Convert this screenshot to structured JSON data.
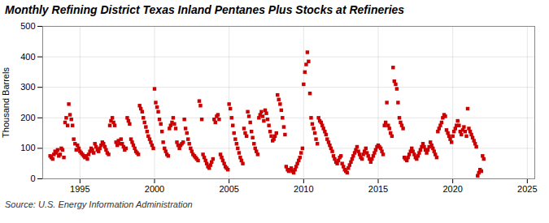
{
  "chart_data": {
    "type": "scatter",
    "title": "Monthly Refining District Texas Inland Pentanes Plus Stocks at Refineries",
    "y_label": "Thousand Barrels",
    "annotations": [
      "Source: U.S. Energy Information Administration"
    ],
    "xlim": [
      1992.5,
      2025.5
    ],
    "ylim": [
      0,
      500
    ],
    "xticks": [
      1995,
      2000,
      2005,
      2010,
      2015,
      2020,
      2025
    ],
    "yticks": [
      0,
      100,
      200,
      300,
      400,
      500
    ],
    "grid": true,
    "color": "#cc0000",
    "marker": "square",
    "x": [
      1993.0,
      1993.08,
      1993.17,
      1993.25,
      1993.33,
      1993.42,
      1993.5,
      1993.58,
      1993.67,
      1993.75,
      1993.83,
      1993.92,
      1994.0,
      1994.08,
      1994.17,
      1994.25,
      1994.33,
      1994.42,
      1994.5,
      1994.58,
      1994.67,
      1994.75,
      1994.83,
      1994.92,
      1995.0,
      1995.08,
      1995.17,
      1995.25,
      1995.33,
      1995.42,
      1995.5,
      1995.58,
      1995.67,
      1995.75,
      1995.83,
      1995.92,
      1996.0,
      1996.08,
      1996.17,
      1996.25,
      1996.33,
      1996.42,
      1996.5,
      1996.58,
      1996.67,
      1996.75,
      1996.83,
      1996.92,
      1997.0,
      1997.08,
      1997.17,
      1997.25,
      1997.33,
      1997.42,
      1997.5,
      1997.58,
      1997.67,
      1997.75,
      1997.83,
      1997.92,
      1998.0,
      1998.08,
      1998.17,
      1998.25,
      1998.33,
      1998.42,
      1998.5,
      1998.58,
      1998.67,
      1998.75,
      1998.83,
      1998.92,
      1999.0,
      1999.08,
      1999.17,
      1999.25,
      1999.33,
      1999.42,
      1999.5,
      1999.58,
      1999.67,
      1999.75,
      1999.83,
      1999.92,
      2000.0,
      2000.08,
      2000.17,
      2000.25,
      2000.33,
      2000.42,
      2000.5,
      2000.58,
      2000.67,
      2000.75,
      2000.83,
      2000.92,
      2001.0,
      2001.08,
      2001.17,
      2001.25,
      2001.33,
      2001.42,
      2001.5,
      2001.58,
      2001.67,
      2001.75,
      2001.83,
      2001.92,
      2002.0,
      2002.08,
      2002.17,
      2002.25,
      2002.33,
      2002.42,
      2002.5,
      2002.58,
      2002.67,
      2002.75,
      2002.83,
      2002.92,
      2003.0,
      2003.08,
      2003.17,
      2003.25,
      2003.33,
      2003.42,
      2003.5,
      2003.58,
      2003.67,
      2003.75,
      2003.83,
      2003.92,
      2004.0,
      2004.08,
      2004.17,
      2004.25,
      2004.33,
      2004.42,
      2004.5,
      2004.58,
      2004.67,
      2004.75,
      2004.83,
      2004.92,
      2005.0,
      2005.08,
      2005.17,
      2005.25,
      2005.33,
      2005.42,
      2005.5,
      2005.58,
      2005.67,
      2005.75,
      2005.83,
      2005.92,
      2006.0,
      2006.08,
      2006.17,
      2006.25,
      2006.33,
      2006.42,
      2006.5,
      2006.58,
      2006.67,
      2006.75,
      2006.83,
      2006.92,
      2007.0,
      2007.08,
      2007.17,
      2007.25,
      2007.33,
      2007.42,
      2007.5,
      2007.58,
      2007.67,
      2007.75,
      2007.83,
      2007.92,
      2008.0,
      2008.08,
      2008.17,
      2008.25,
      2008.33,
      2008.42,
      2008.5,
      2008.58,
      2008.67,
      2008.75,
      2008.83,
      2008.92,
      2009.0,
      2009.08,
      2009.17,
      2009.25,
      2009.33,
      2009.42,
      2009.5,
      2009.58,
      2009.67,
      2009.75,
      2009.83,
      2009.92,
      2010.0,
      2010.08,
      2010.17,
      2010.25,
      2010.33,
      2010.42,
      2010.5,
      2010.58,
      2010.67,
      2010.75,
      2010.83,
      2010.92,
      2011.0,
      2011.08,
      2011.17,
      2011.25,
      2011.33,
      2011.42,
      2011.5,
      2011.58,
      2011.67,
      2011.75,
      2011.83,
      2011.92,
      2012.0,
      2012.08,
      2012.17,
      2012.25,
      2012.33,
      2012.42,
      2012.5,
      2012.58,
      2012.67,
      2012.75,
      2012.83,
      2012.92,
      2013.0,
      2013.08,
      2013.17,
      2013.25,
      2013.33,
      2013.42,
      2013.5,
      2013.58,
      2013.67,
      2013.75,
      2013.83,
      2013.92,
      2014.0,
      2014.08,
      2014.17,
      2014.25,
      2014.33,
      2014.42,
      2014.5,
      2014.58,
      2014.67,
      2014.75,
      2014.83,
      2014.92,
      2015.0,
      2015.08,
      2015.17,
      2015.25,
      2015.33,
      2015.42,
      2015.5,
      2015.58,
      2015.67,
      2015.75,
      2015.83,
      2015.92,
      2016.0,
      2016.08,
      2016.17,
      2016.25,
      2016.33,
      2016.42,
      2016.5,
      2016.58,
      2016.67,
      2016.75,
      2016.83,
      2016.92,
      2017.0,
      2017.08,
      2017.17,
      2017.25,
      2017.33,
      2017.42,
      2017.5,
      2017.58,
      2017.67,
      2017.75,
      2017.83,
      2017.92,
      2018.0,
      2018.08,
      2018.17,
      2018.25,
      2018.33,
      2018.42,
      2018.5,
      2018.58,
      2018.67,
      2018.75,
      2018.83,
      2018.92,
      2019.0,
      2019.08,
      2019.17,
      2019.25,
      2019.33,
      2019.42,
      2019.5,
      2019.58,
      2019.67,
      2019.75,
      2019.83,
      2019.92,
      2020.0,
      2020.08,
      2020.17,
      2020.25,
      2020.33,
      2020.42,
      2020.5,
      2020.58,
      2020.67,
      2020.75,
      2020.83,
      2020.92,
      2021.0,
      2021.08,
      2021.17,
      2021.25,
      2021.33,
      2021.42,
      2021.5,
      2021.58,
      2021.67,
      2021.75,
      2021.83,
      2021.92,
      2022.0,
      2022.08
    ],
    "values": [
      75,
      70,
      65,
      80,
      90,
      85,
      95,
      75,
      80,
      100,
      95,
      70,
      185,
      200,
      175,
      245,
      210,
      195,
      175,
      130,
      115,
      95,
      110,
      100,
      90,
      85,
      80,
      75,
      70,
      75,
      65,
      80,
      90,
      100,
      95,
      85,
      115,
      105,
      95,
      90,
      100,
      110,
      120,
      115,
      105,
      95,
      85,
      80,
      175,
      190,
      200,
      185,
      175,
      120,
      110,
      125,
      115,
      130,
      115,
      105,
      95,
      100,
      200,
      190,
      180,
      130,
      120,
      110,
      100,
      90,
      85,
      80,
      240,
      230,
      220,
      200,
      185,
      170,
      155,
      140,
      130,
      120,
      110,
      100,
      295,
      250,
      235,
      220,
      195,
      180,
      155,
      120,
      100,
      90,
      80,
      75,
      165,
      175,
      185,
      200,
      180,
      165,
      120,
      110,
      100,
      110,
      115,
      120,
      195,
      165,
      150,
      130,
      115,
      100,
      90,
      80,
      75,
      70,
      65,
      60,
      255,
      240,
      195,
      80,
      70,
      60,
      50,
      40,
      35,
      45,
      55,
      65,
      195,
      185,
      205,
      210,
      195,
      80,
      70,
      60,
      50,
      40,
      35,
      30,
      245,
      230,
      200,
      175,
      150,
      130,
      115,
      100,
      85,
      70,
      60,
      50,
      165,
      150,
      140,
      220,
      205,
      185,
      155,
      135,
      115,
      100,
      90,
      80,
      200,
      210,
      220,
      205,
      190,
      225,
      215,
      195,
      175,
      155,
      140,
      125,
      130,
      140,
      150,
      275,
      260,
      245,
      225,
      200,
      170,
      145,
      40,
      30,
      25,
      30,
      35,
      25,
      20,
      30,
      40,
      50,
      60,
      70,
      85,
      100,
      310,
      350,
      375,
      415,
      385,
      280,
      200,
      180,
      165,
      150,
      130,
      115,
      200,
      190,
      185,
      175,
      165,
      155,
      145,
      130,
      120,
      110,
      100,
      90,
      75,
      65,
      55,
      50,
      60,
      70,
      75,
      50,
      40,
      30,
      25,
      20,
      35,
      45,
      55,
      65,
      75,
      85,
      95,
      105,
      90,
      80,
      70,
      65,
      80,
      90,
      100,
      85,
      75,
      65,
      55,
      65,
      75,
      85,
      95,
      105,
      110,
      105,
      100,
      90,
      80,
      175,
      185,
      250,
      175,
      165,
      150,
      140,
      365,
      320,
      310,
      295,
      250,
      200,
      185,
      175,
      165,
      70,
      65,
      60,
      70,
      80,
      90,
      100,
      90,
      80,
      70,
      65,
      75,
      85,
      95,
      105,
      115,
      105,
      95,
      85,
      95,
      105,
      120,
      110,
      100,
      90,
      80,
      70,
      155,
      165,
      175,
      185,
      200,
      210,
      205,
      160,
      150,
      140,
      130,
      120,
      140,
      155,
      165,
      175,
      190,
      175,
      155,
      145,
      160,
      170,
      155,
      140,
      230,
      165,
      155,
      145,
      135,
      125,
      115,
      105,
      10,
      20,
      30,
      25,
      75,
      65
    ]
  }
}
